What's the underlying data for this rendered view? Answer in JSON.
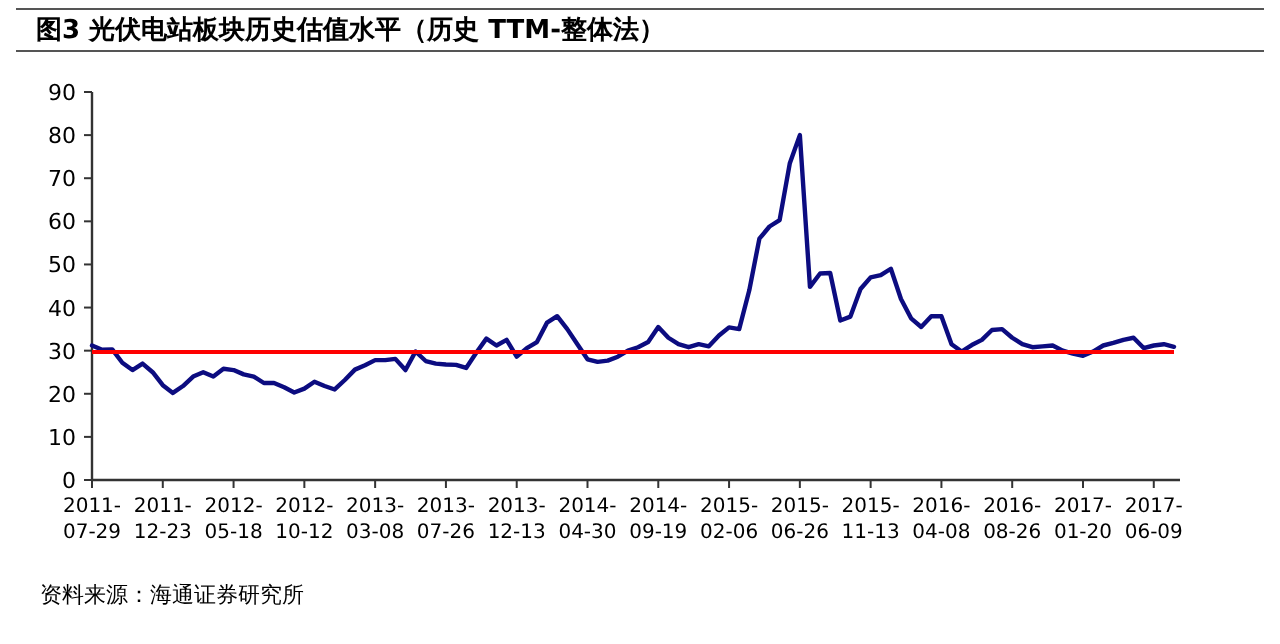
{
  "chart_data": {
    "type": "line",
    "title": "图3  光伏电站板块历史估值水平（历史 TTM-整体法）",
    "annotations": [
      "资料来源：海通证券研究所"
    ],
    "categories": [
      "2011-07-29",
      null,
      null,
      null,
      null,
      null,
      null,
      "2011-12-23",
      null,
      null,
      null,
      null,
      null,
      null,
      "2012-05-18",
      null,
      null,
      null,
      null,
      null,
      null,
      "2012-10-12",
      null,
      null,
      null,
      null,
      null,
      null,
      "2013-03-08",
      null,
      null,
      null,
      null,
      null,
      null,
      "2013-07-26",
      null,
      null,
      null,
      null,
      null,
      null,
      "2013-12-13",
      null,
      null,
      null,
      null,
      null,
      null,
      "2014-04-30",
      null,
      null,
      null,
      null,
      null,
      null,
      "2014-09-19",
      null,
      null,
      null,
      null,
      null,
      null,
      "2015-02-06",
      null,
      null,
      null,
      null,
      null,
      null,
      "2015-06-26",
      null,
      null,
      null,
      null,
      null,
      null,
      "2015-11-13",
      null,
      null,
      null,
      null,
      null,
      null,
      "2016-04-08",
      null,
      null,
      null,
      null,
      null,
      null,
      "2016-08-26",
      null,
      null,
      null,
      null,
      null,
      null,
      "2017-01-20",
      null,
      null,
      null,
      null,
      null,
      null,
      "2017-06-09",
      null,
      null
    ],
    "series": [
      {
        "color": "#0c0c80",
        "values": [
          31.2,
          30.2,
          30.3,
          27.2,
          25.5,
          27,
          25,
          22,
          20.2,
          21.8,
          24,
          25,
          24,
          25.8,
          25.5,
          24.5,
          24,
          22.5,
          22.5,
          21.5,
          20.3,
          21.2,
          22.8,
          21.8,
          21,
          23.2,
          25.6,
          26.6,
          27.8,
          27.8,
          28.1,
          25.5,
          29.8,
          27.6,
          27,
          26.8,
          26.7,
          26,
          29.5,
          32.8,
          31.2,
          32.5,
          28.6,
          30.6,
          32,
          36.5,
          38,
          35,
          31.5,
          28,
          27.4,
          27.7,
          28.6,
          30,
          30.8,
          32,
          35.5,
          33,
          31.5,
          30.8,
          31.5,
          31,
          33.5,
          35.4,
          35,
          44,
          56,
          58.8,
          60.3,
          73.4,
          80,
          44.8,
          47.9,
          48,
          37,
          37.9,
          44.3,
          47,
          47.5,
          49,
          42,
          37.5,
          35.5,
          38,
          38,
          31.5,
          29.8,
          31.3,
          32.5,
          34.8,
          35,
          33,
          31.5,
          30.8,
          31,
          31.2,
          30,
          29.3,
          28.8,
          29.8,
          31.2,
          31.8,
          32.5,
          33,
          30.6,
          31.2,
          31.5,
          30.9
        ]
      }
    ],
    "ylim": [
      0,
      90
    ],
    "yticks": [
      0,
      10,
      20,
      30,
      40,
      50,
      60,
      70,
      80,
      90
    ],
    "ref_lines": [
      {
        "axis": "y",
        "value": 29.7,
        "color": "#ff0000"
      }
    ],
    "grid": false,
    "marker": "none",
    "line_style": "solid"
  }
}
